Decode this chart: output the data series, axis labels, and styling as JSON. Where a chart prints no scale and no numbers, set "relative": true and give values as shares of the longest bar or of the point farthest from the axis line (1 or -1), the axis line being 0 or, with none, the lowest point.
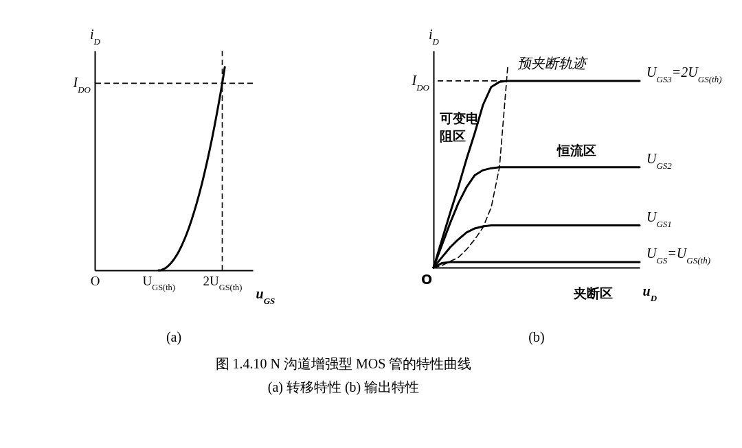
{
  "chart_data": [
    {
      "type": "line",
      "title": "(a)",
      "xlabel": "u$_{GS}$",
      "ylabel": "i$_{D}$",
      "relative": true,
      "categories": [
        "O",
        null,
        null,
        null,
        null,
        null,
        null,
        null,
        null,
        null,
        null,
        null,
        null,
        null,
        null,
        null,
        null,
        null,
        null,
        null,
        null,
        null,
        null,
        null,
        null,
        "U$_{GS(th)}$",
        null,
        null,
        null,
        null,
        null,
        null,
        null,
        null,
        null,
        null,
        null,
        null,
        null,
        null,
        null,
        null,
        null,
        null,
        null,
        null,
        null,
        null,
        null,
        null,
        "2U$_{GS(th)}$",
        null,
        null,
        null,
        null,
        null,
        null,
        null,
        null,
        null,
        null,
        null,
        null
      ],
      "series": [
        {
          "color": "#000000",
          "values": [
            null,
            null,
            null,
            null,
            null,
            null,
            null,
            null,
            null,
            null,
            null,
            null,
            null,
            null,
            null,
            null,
            null,
            null,
            null,
            null,
            null,
            null,
            null,
            null,
            null,
            0,
            0.001,
            0.006,
            0.013,
            0.024,
            0.037,
            0.053,
            0.072,
            0.094,
            0.119,
            0.147,
            0.178,
            0.212,
            0.249,
            0.289,
            0.331,
            0.377,
            0.425,
            0.477,
            0.531,
            0.589,
            0.649,
            0.712,
            0.779,
            0.848,
            0.92,
            1,
            null,
            null,
            null,
            null,
            null,
            null,
            null,
            null,
            null,
            null,
            null
          ]
        }
      ],
      "ref_lines": [
        {
          "axis": "y",
          "value": 0.92,
          "label": "I$_{DO}$",
          "line_style": "dashed"
        },
        {
          "axis": "x",
          "value": "2U$_{GS(th)}$",
          "label": null,
          "line_style": "dashed"
        }
      ]
    },
    {
      "type": "line",
      "title": "(b)",
      "xlabel": "u$_{D}$",
      "ylabel": "i$_{D}$",
      "relative": true,
      "categories": [
        null,
        null,
        null,
        null,
        null,
        null,
        null,
        null,
        null,
        null,
        null,
        null,
        null,
        null,
        null,
        null,
        null,
        null,
        null,
        null,
        null,
        null,
        null,
        null,
        null,
        null
      ],
      "series": [
        {
          "name": "U$_{GS3}$=2U$_{GS(th)}$",
          "color": "#000000",
          "values": [
            0,
            0.135,
            0.27,
            0.4,
            0.54,
            0.67,
            0.81,
            0.9,
            0.925,
            0.93,
            0.93,
            0.93,
            0.93,
            0.93,
            0.93,
            0.93,
            0.93,
            0.93,
            0.93,
            0.93,
            0.93,
            0.93,
            0.93,
            0.93,
            0.93,
            0.93
          ]
        },
        {
          "name": "U$_{GS2}$",
          "color": "#000000",
          "values": [
            0,
            0.11,
            0.22,
            0.32,
            0.4,
            0.46,
            0.485,
            0.495,
            0.5,
            0.5,
            0.5,
            0.5,
            0.5,
            0.5,
            0.5,
            0.5,
            0.5,
            0.5,
            0.5,
            0.5,
            0.5,
            0.5,
            0.5,
            0.5,
            0.5,
            0.5
          ]
        },
        {
          "name": "U$_{GS1}$",
          "color": "#000000",
          "values": [
            0,
            0.05,
            0.1,
            0.14,
            0.175,
            0.195,
            0.205,
            0.21,
            0.21,
            0.21,
            0.21,
            0.21,
            0.21,
            0.21,
            0.21,
            0.21,
            0.21,
            0.21,
            0.21,
            0.21,
            0.21,
            0.21,
            0.21,
            0.21,
            0.21,
            0.21
          ]
        },
        {
          "name": "U$_{GS}$=U$_{GS(th)}$",
          "color": "#000000",
          "values": [
            0,
            0.022,
            0.027,
            0.027,
            0.027,
            0.027,
            0.027,
            0.027,
            0.027,
            0.027,
            0.027,
            0.027,
            0.027,
            0.027,
            0.027,
            0.027,
            0.027,
            0.027,
            0.027,
            0.027,
            0.027,
            0.027,
            0.027,
            0.027,
            0.027,
            0.027
          ]
        },
        {
          "name": "预夹断轨迹",
          "color": "#000000",
          "line_style": "dashed",
          "values": [
            0,
            0.01,
            0.03,
            0.05,
            0.09,
            0.14,
            0.2,
            0.3,
            0.5,
            1,
            null,
            null,
            null,
            null,
            null,
            null,
            null,
            null,
            null,
            null,
            null,
            null,
            null,
            null,
            null,
            null
          ]
        }
      ],
      "ref_lines": [
        {
          "axis": "y",
          "value": 0.93,
          "label": "I$_{DO}$",
          "line_style": "dashed"
        }
      ],
      "annotations": [
        "O",
        "可变电阻区",
        "恒流区",
        "夹断区",
        "图 1.4.10  N 沟道增强型 MOS 管的特性曲线",
        "(a) 转移特性  (b) 输出特性"
      ]
    }
  ]
}
